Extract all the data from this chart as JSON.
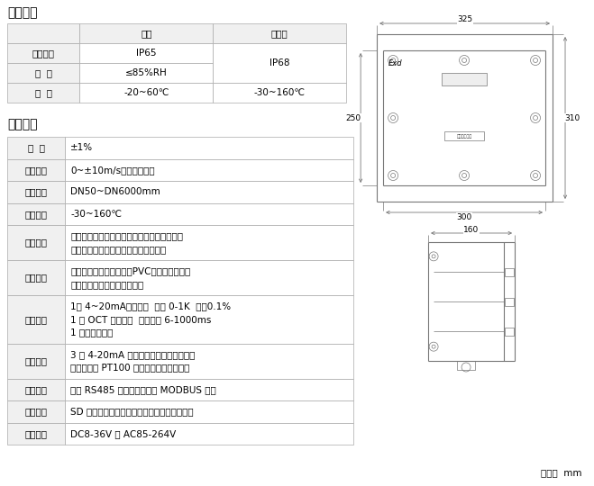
{
  "title_work_env": "工作环境",
  "title_basic_params": "基本参数",
  "unit_label": "单位：  mm",
  "env_headers": [
    "",
    "主机",
    "传感器"
  ],
  "env_rows": [
    [
      "防护等级",
      "IP65",
      ""
    ],
    [
      "湿  度",
      "≤85%RH",
      "IP68"
    ],
    [
      "温  度",
      "-20~60℃",
      "-30~160℃"
    ]
  ],
  "params": [
    [
      "精  度",
      "±1%",
      1
    ],
    [
      "流速范围",
      "0~±10m/s，正反向测量",
      1
    ],
    [
      "管道口径",
      "DN50~DN6000mm",
      1
    ],
    [
      "流体温度",
      "-30~160℃",
      1
    ],
    [
      "流体种类",
      "水、海水、污水、酸碱液、酒精、啤酒、各类\n油类等能传导超声波的单一均匀液体。",
      2
    ],
    [
      "管道材质",
      "钢、不锈钢、铸铁、铜、PVC、铝、玻璃钢等\n一切质密的管道，允许有衬里",
      2
    ],
    [
      "信号输出",
      "1路 4~20mA电流输出  阻抗 0-1K  精度0.1%\n1 路 OCT 脉冲输出  脉冲宽度 6-1000ms\n1 路继电器输出",
      3
    ],
    [
      "信号输入",
      "3 路 4-20mA 电流输入，可做数据采集器\n连接三线制 PT100 铂电阻，实现热量测量",
      2
    ],
    [
      "通信接口",
      "隔离 RS485 串行接口，支持 MODBUS 协议",
      1
    ],
    [
      "数据存储",
      "SD 卡定时存储设定的参数及测量结果（选配）",
      1
    ],
    [
      "供电方式",
      "DC8-36V 或 AC85-264V",
      1
    ]
  ],
  "bg_color": "#ffffff",
  "label_bg": "#f0f0f0",
  "border_color": "#aaaaaa",
  "text_color": "#000000",
  "title_fontsize": 10,
  "cell_fontsize": 7.5,
  "drawing_color": "#888888"
}
